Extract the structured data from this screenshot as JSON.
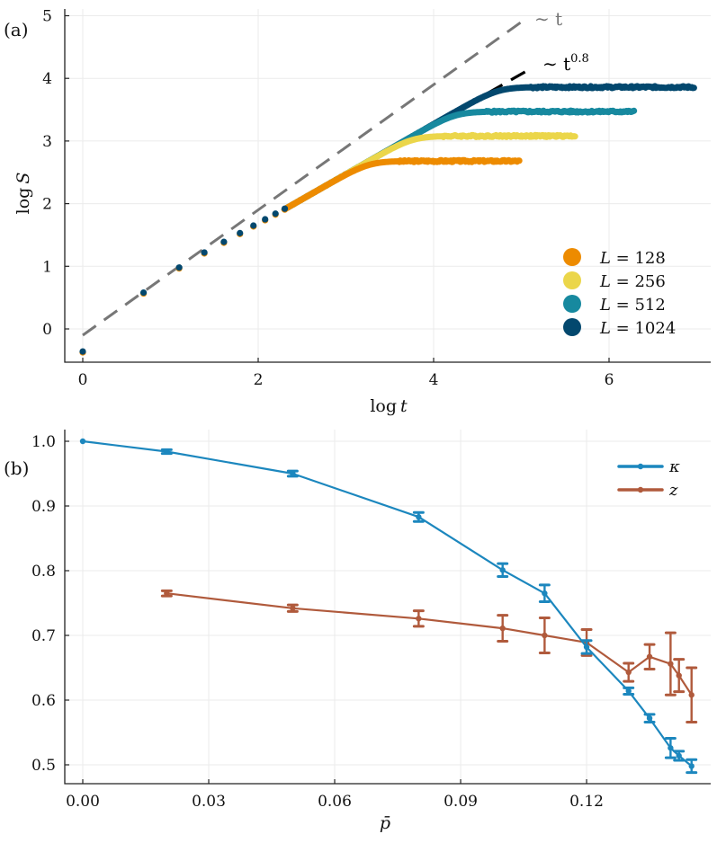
{
  "chart_data": [
    {
      "panel": "(a)",
      "type": "scatter",
      "xlabel": "log t",
      "ylabel": "log S",
      "xlim": [
        -0.2,
        7.2
      ],
      "ylim": [
        -0.53,
        5.12
      ],
      "xticks": [
        0,
        2,
        4,
        6
      ],
      "yticks": [
        0,
        1,
        2,
        3,
        4,
        5
      ],
      "grid": true,
      "legend_position": "bottom-right",
      "early_points": {
        "logt": [
          0,
          0.693,
          1.099,
          1.386,
          1.609,
          1.792,
          1.946,
          2.079,
          2.197,
          2.303
        ],
        "logS": [
          -0.36,
          0.58,
          0.98,
          1.22,
          1.39,
          1.53,
          1.65,
          1.75,
          1.84,
          1.92
        ]
      },
      "series": [
        {
          "name": "L = 128",
          "label_var": "L",
          "label_val": "128",
          "color": "#ED8B00",
          "growth_exponent": 0.8,
          "plateau_logS": 2.68,
          "saturation_logt": 3.6,
          "end_logt": 4.98
        },
        {
          "name": "L = 256",
          "label_var": "L",
          "label_val": "256",
          "color": "#EBD64A",
          "growth_exponent": 0.8,
          "plateau_logS": 3.08,
          "saturation_logt": 4.1,
          "end_logt": 5.62
        },
        {
          "name": "L = 512",
          "label_var": "L",
          "label_val": "512",
          "color": "#17899F",
          "growth_exponent": 0.8,
          "plateau_logS": 3.47,
          "saturation_logt": 4.6,
          "end_logt": 6.29
        },
        {
          "name": "L = 1024",
          "label_var": "L",
          "label_val": "1024",
          "color": "#03486E",
          "growth_exponent": 0.8,
          "plateau_logS": 3.86,
          "saturation_logt": 5.1,
          "end_logt": 6.97
        }
      ],
      "reference_lines": [
        {
          "name": "~ t",
          "label": "∼ t",
          "slope": 1.0,
          "intercept": -0.1,
          "x_range": [
            0,
            5.07
          ],
          "color": "#777777"
        },
        {
          "name": "~ t^0.8",
          "label_base": "∼ t",
          "label_exp": "0.8",
          "slope": 0.8,
          "intercept": 0.07,
          "x_range": [
            2.3,
            5.12
          ],
          "color": "#000000"
        }
      ]
    },
    {
      "panel": "(b)",
      "type": "line",
      "xlabel": "p̄",
      "ylabel": "",
      "xlim": [
        -0.0045,
        0.1465
      ],
      "ylim": [
        0.471,
        1.016
      ],
      "xticks": [
        "0.00",
        "0.03",
        "0.06",
        "0.09",
        "0.12"
      ],
      "yticks": [
        "0.5",
        "0.6",
        "0.7",
        "0.8",
        "0.9",
        "1.0"
      ],
      "grid": true,
      "legend_position": "top-right",
      "series": [
        {
          "name": "κ",
          "color": "#1C87BE",
          "x": [
            0.0,
            0.02,
            0.05,
            0.08,
            0.1,
            0.11,
            0.12,
            0.13,
            0.135,
            0.14,
            0.142,
            0.145
          ],
          "y": [
            1.0,
            0.984,
            0.95,
            0.883,
            0.801,
            0.765,
            0.682,
            0.614,
            0.572,
            0.526,
            0.514,
            0.498
          ],
          "err": [
            0.0,
            0.003,
            0.004,
            0.007,
            0.01,
            0.013,
            0.01,
            0.005,
            0.006,
            0.015,
            0.007,
            0.01
          ]
        },
        {
          "name": "z",
          "color": "#B05A3C",
          "x": [
            0.02,
            0.05,
            0.08,
            0.1,
            0.11,
            0.12,
            0.13,
            0.135,
            0.14,
            0.142,
            0.145
          ],
          "y": [
            0.765,
            0.742,
            0.726,
            0.711,
            0.7,
            0.689,
            0.643,
            0.667,
            0.656,
            0.638,
            0.608
          ],
          "err": [
            0.004,
            0.005,
            0.012,
            0.02,
            0.027,
            0.02,
            0.014,
            0.019,
            0.048,
            0.025,
            0.042
          ]
        }
      ]
    }
  ]
}
